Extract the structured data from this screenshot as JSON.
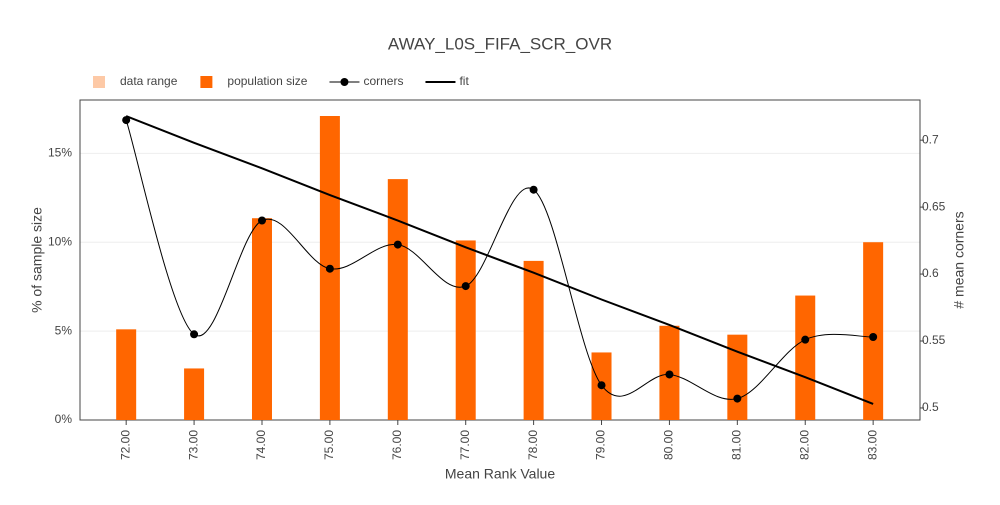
{
  "chart_data": {
    "type": "bar-line",
    "title": "AWAY_L0S_FIFA_SCR_OVR",
    "x_label": "Mean Rank Value",
    "y_label": "% of sample size",
    "y2_label": "# mean corners",
    "categories": [
      "72.00",
      "73.00",
      "74.00",
      "75.00",
      "76.00",
      "77.00",
      "78.00",
      "79.00",
      "80.00",
      "81.00",
      "82.00",
      "83.00"
    ],
    "series": [
      {
        "name": "data range",
        "color": "#fdc9a6"
      },
      {
        "name": "population size",
        "color": "#ff6600",
        "kind": "bar",
        "values": [
          5.1,
          2.9,
          11.35,
          17.1,
          13.55,
          10.1,
          8.95,
          3.8,
          5.3,
          4.8,
          7.0,
          10.0
        ]
      },
      {
        "name": "corners",
        "color": "#000000",
        "kind": "spline",
        "axis": "y2",
        "values": [
          0.715,
          0.555,
          0.64,
          0.604,
          0.622,
          0.591,
          0.663,
          0.517,
          0.525,
          0.507,
          0.551,
          0.553
        ]
      },
      {
        "name": "fit",
        "color": "#000000",
        "kind": "line",
        "axis": "y2",
        "values": [
          0.718,
          0.698,
          0.679,
          0.659,
          0.64,
          0.62,
          0.601,
          0.581,
          0.562,
          0.542,
          0.523,
          0.503
        ]
      }
    ],
    "ylim": [
      0,
      18
    ],
    "yticks": [
      {
        "value": 0,
        "label": "0%"
      },
      {
        "value": 5,
        "label": "5%"
      },
      {
        "value": 10,
        "label": "10%"
      },
      {
        "value": 15,
        "label": "15%"
      }
    ],
    "y2lim": [
      0.491,
      0.73
    ],
    "y2ticks": [
      0.5,
      0.55,
      0.6,
      0.65,
      0.7
    ],
    "grid": true,
    "legend": "top-left"
  }
}
